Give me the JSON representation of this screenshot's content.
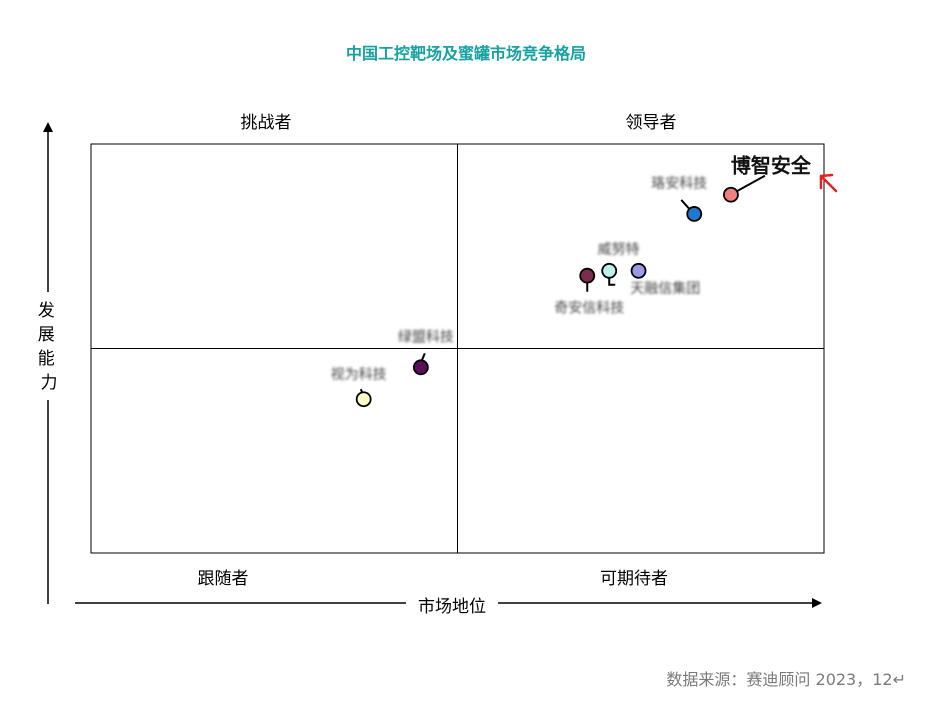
{
  "chart_data": {
    "type": "scatter",
    "title": "中国工控靶场及蜜罐市场竞争格局",
    "xlabel": "市场地位",
    "ylabel": "发展能力",
    "xlim": [
      0,
      100
    ],
    "ylim": [
      0,
      100
    ],
    "quadrants": {
      "top_left": "挑战者",
      "top_right": "领导者",
      "bottom_left": "跟随者",
      "bottom_right": "可期待者"
    },
    "points": [
      {
        "name": "博智安全",
        "x": 87.3,
        "y": 87.6,
        "color": "#F08080",
        "emphasis": true,
        "obscured": false
      },
      {
        "name": "珞安科技",
        "x": 82.3,
        "y": 82.9,
        "color": "#1E78D2",
        "emphasis": false,
        "obscured": true
      },
      {
        "name": "威努特",
        "x": 74.7,
        "y": 69.0,
        "color": "#9A9AE8",
        "emphasis": false,
        "obscured": true
      },
      {
        "name": "天融信集团",
        "x": 70.7,
        "y": 69.0,
        "color": "#BFEFEA",
        "emphasis": false,
        "obscured": true
      },
      {
        "name": "奇安信科技",
        "x": 67.7,
        "y": 67.8,
        "color": "#7B2D4F",
        "emphasis": false,
        "obscured": true
      },
      {
        "name": "绿盟科技",
        "x": 45.0,
        "y": 45.4,
        "color": "#5A0F5E",
        "emphasis": false,
        "obscured": true
      },
      {
        "name": "视为科技",
        "x": 37.2,
        "y": 37.6,
        "color": "#FFFDC8",
        "emphasis": false,
        "obscured": true
      }
    ],
    "grid": false,
    "legend": "none"
  },
  "source_note": "数据来源：赛迪顾问  2023，12↵"
}
